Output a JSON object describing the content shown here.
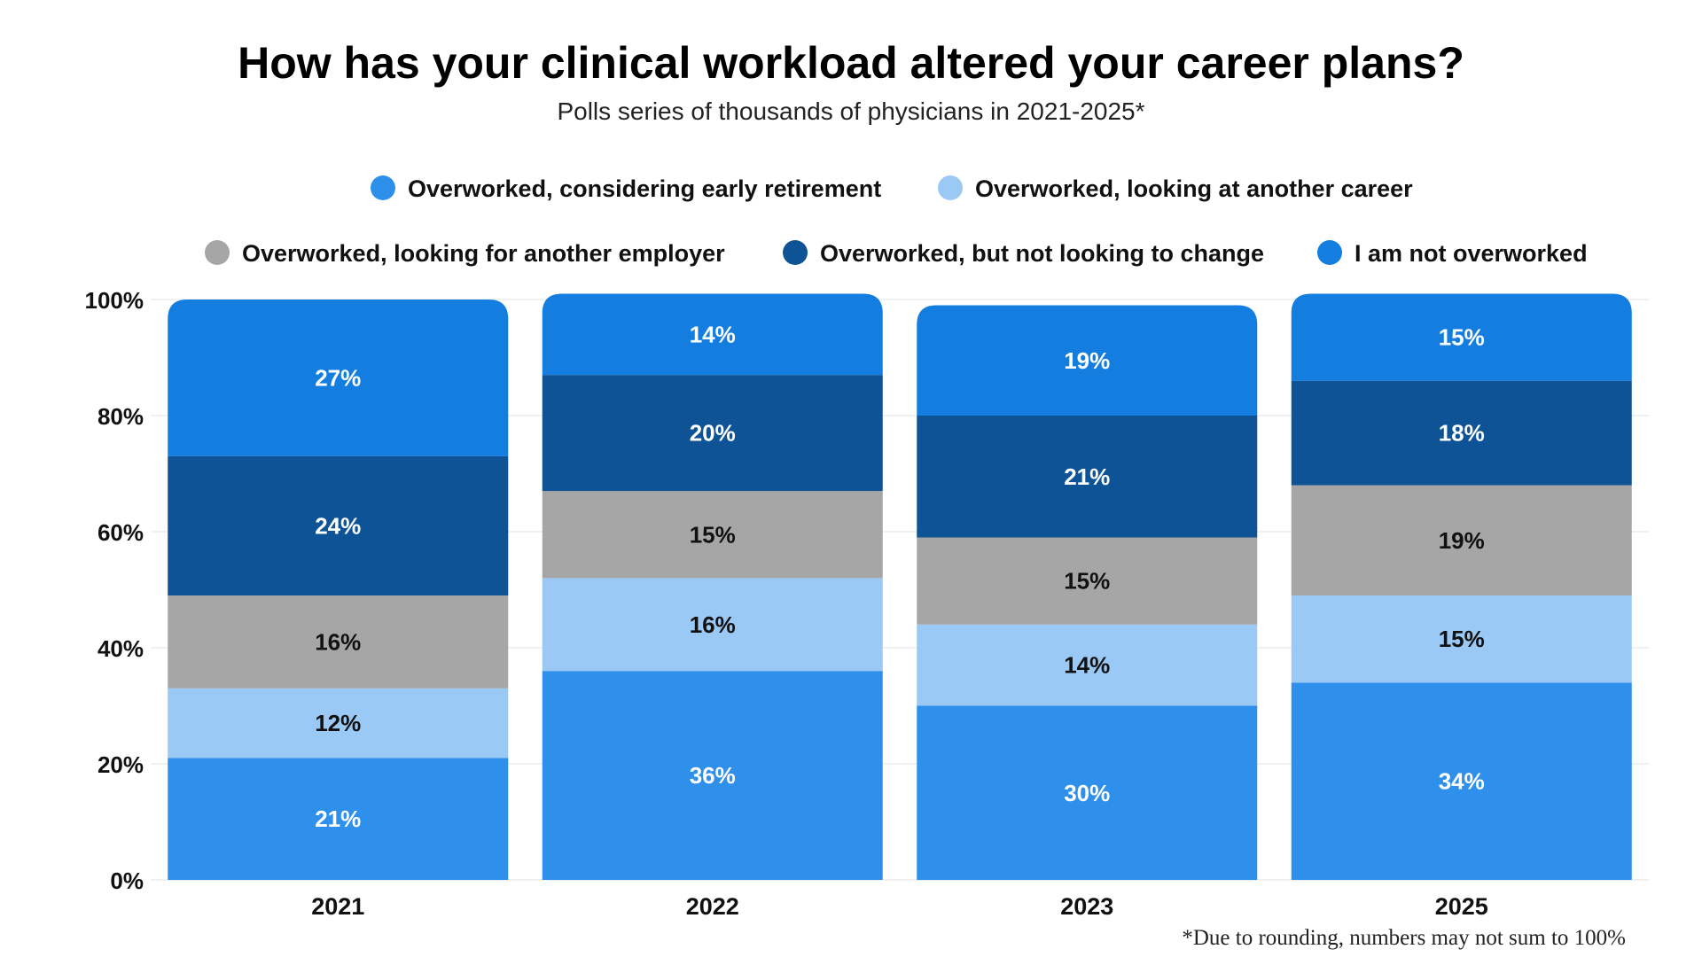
{
  "title": "How has your clinical workload altered your career plans?",
  "subtitle": "Polls series of thousands of physicians in 2021-2025*",
  "footnote": "*Due to rounding, numbers may not sum to 100%",
  "chart_data": {
    "type": "bar",
    "stacked": true,
    "categories": [
      "2021",
      "2022",
      "2023",
      "2025"
    ],
    "ylim": [
      0,
      100
    ],
    "y_ticks": [
      "0%",
      "20%",
      "40%",
      "60%",
      "80%",
      "100%"
    ],
    "grid": true,
    "legend_position": "top",
    "series": [
      {
        "name": "Overworked, considering early retirement",
        "values": [
          21,
          36,
          30,
          34
        ],
        "labels": [
          "21%",
          "36%",
          "30%",
          "34%"
        ],
        "color": "#2e90eb",
        "label_color": "#ffffff"
      },
      {
        "name": "Overworked, looking at another career",
        "values": [
          12,
          16,
          14,
          15
        ],
        "labels": [
          "12%",
          "16%",
          "14%",
          "15%"
        ],
        "color": "#9bc9f5",
        "label_color": "#111111"
      },
      {
        "name": "Overworked, looking for another employer",
        "values": [
          16,
          15,
          15,
          19
        ],
        "labels": [
          "16%",
          "15%",
          "15%",
          "19%"
        ],
        "color": "#a6a6a6",
        "label_color": "#111111"
      },
      {
        "name": "Overworked, but not looking to change",
        "values": [
          24,
          20,
          21,
          18
        ],
        "labels": [
          "24%",
          "20%",
          "21%",
          "18%"
        ],
        "color": "#0e5395",
        "label_color": "#ffffff"
      },
      {
        "name": "I am not overworked",
        "values": [
          27,
          14,
          19,
          15
        ],
        "labels": [
          "27%",
          "14%",
          "19%",
          "15%"
        ],
        "color": "#137ee0",
        "label_color": "#ffffff"
      }
    ]
  }
}
